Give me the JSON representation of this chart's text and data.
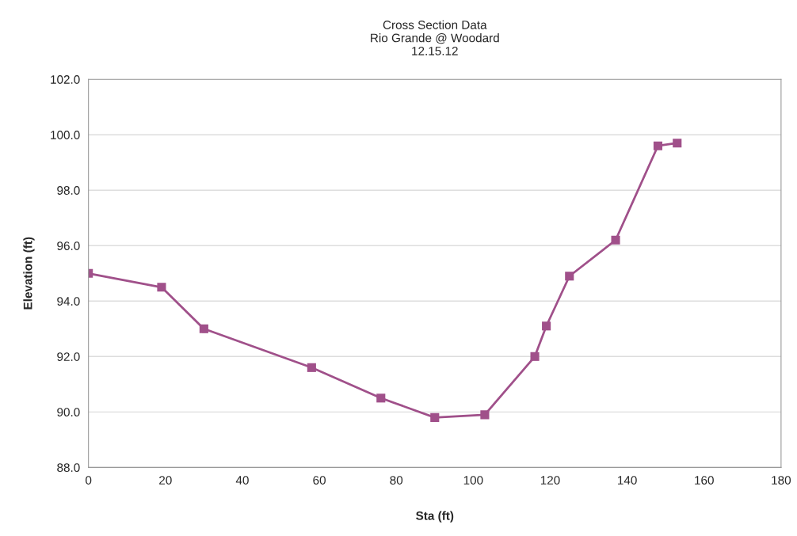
{
  "chart_data": {
    "type": "line",
    "title": "Cross Section Data\nRio Grande @ Woodard\n12.15.12",
    "xlabel": "Sta (ft)",
    "ylabel": "Elevation (ft)",
    "x": [
      0,
      19,
      30,
      58,
      76,
      90,
      103,
      116,
      119,
      125,
      137,
      148,
      153
    ],
    "series": [
      {
        "color": "#a0508a",
        "values": [
          95.0,
          94.5,
          93.0,
          91.6,
          90.5,
          89.8,
          89.9,
          92.0,
          93.1,
          94.9,
          96.2,
          99.6,
          99.7
        ]
      }
    ],
    "xlim": [
      0,
      180
    ],
    "xticks": [
      0,
      20,
      40,
      60,
      80,
      100,
      120,
      140,
      160,
      180
    ],
    "ylim": [
      88,
      102
    ],
    "yticks": [
      {
        "value": 88,
        "label": "88.0"
      },
      {
        "value": 90,
        "label": "90.0"
      },
      {
        "value": 92,
        "label": "92.0"
      },
      {
        "value": 94,
        "label": "94.0"
      },
      {
        "value": 96,
        "label": "96.0"
      },
      {
        "value": 98,
        "label": "98.0"
      },
      {
        "value": 100,
        "label": "100.0"
      },
      {
        "value": 102,
        "label": "102.0"
      }
    ],
    "grid": "y",
    "marker": "square",
    "line_style": "solid"
  }
}
